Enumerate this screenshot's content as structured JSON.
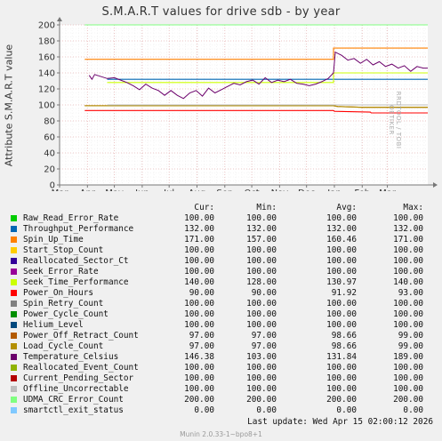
{
  "chart_data": {
    "type": "line",
    "title": "S.M.A.R.T values for drive sdb - by year",
    "ylabel": "Attribute S.M.A.R.T value",
    "xlabel": "",
    "ylim": [
      0,
      200
    ],
    "yticks": [
      0,
      20,
      40,
      60,
      80,
      100,
      120,
      140,
      160,
      180,
      200
    ],
    "x_range": [
      "2025-03-01",
      "2026-04-15"
    ],
    "x_ticks": [
      {
        "label": "Mar",
        "date": "2025-03-01"
      },
      {
        "label": "Apr",
        "date": "2025-04-01"
      },
      {
        "label": "May",
        "date": "2025-05-01"
      },
      {
        "label": "Jun",
        "date": "2025-06-01"
      },
      {
        "label": "Jul",
        "date": "2025-07-01"
      },
      {
        "label": "Aug",
        "date": "2025-08-01"
      },
      {
        "label": "Sep",
        "date": "2025-09-01"
      },
      {
        "label": "Oct",
        "date": "2025-10-01"
      },
      {
        "label": "Nov",
        "date": "2025-11-01"
      },
      {
        "label": "Dec",
        "date": "2025-12-01"
      },
      {
        "label": "Jan",
        "date": "2026-01-01"
      },
      {
        "label": "Feb",
        "date": "2026-02-01"
      },
      {
        "label": "Mar",
        "date": "2026-03-01"
      }
    ],
    "grid": true,
    "series": [
      {
        "name": "Raw_Read_Error_Rate",
        "color": "#00cc00",
        "cur": "100.00",
        "min": "100.00",
        "avg": "100.00",
        "max": "100.00",
        "points": [
          [
            "2025-04-23",
            100
          ],
          [
            "2026-04-15",
            100
          ]
        ]
      },
      {
        "name": "Throughput_Performance",
        "color": "#0066b3",
        "cur": "132.00",
        "min": "132.00",
        "avg": "132.00",
        "max": "132.00",
        "points": [
          [
            "2025-04-23",
            132
          ],
          [
            "2026-04-15",
            132
          ]
        ]
      },
      {
        "name": "Spin_Up_Time",
        "color": "#ff8000",
        "cur": "171.00",
        "min": "157.00",
        "avg": "160.46",
        "max": "171.00",
        "points": [
          [
            "2025-03-29",
            157
          ],
          [
            "2025-04-02",
            157
          ],
          [
            "2025-04-23",
            157
          ],
          [
            "2025-12-31",
            157
          ],
          [
            "2025-12-31",
            171
          ],
          [
            "2026-04-15",
            171
          ]
        ]
      },
      {
        "name": "Start_Stop_Count",
        "color": "#ffcc00",
        "cur": "100.00",
        "min": "100.00",
        "avg": "100.00",
        "max": "100.00",
        "points": [
          [
            "2025-04-23",
            100
          ],
          [
            "2026-04-15",
            100
          ]
        ]
      },
      {
        "name": "Reallocated_Sector_Ct",
        "color": "#330099",
        "cur": "100.00",
        "min": "100.00",
        "avg": "100.00",
        "max": "100.00",
        "points": [
          [
            "2025-04-23",
            100
          ],
          [
            "2026-04-15",
            100
          ]
        ]
      },
      {
        "name": "Seek_Error_Rate",
        "color": "#990099",
        "cur": "100.00",
        "min": "100.00",
        "avg": "100.00",
        "max": "100.00",
        "points": [
          [
            "2025-04-23",
            100
          ],
          [
            "2026-04-15",
            100
          ]
        ]
      },
      {
        "name": "Seek_Time_Performance",
        "color": "#ccff00",
        "cur": "140.00",
        "min": "128.00",
        "avg": "130.97",
        "max": "140.00",
        "points": [
          [
            "2025-04-23",
            128
          ],
          [
            "2025-12-31",
            128
          ],
          [
            "2025-12-31",
            140
          ],
          [
            "2026-04-15",
            140
          ]
        ]
      },
      {
        "name": "Power_On_Hours",
        "color": "#ff0000",
        "cur": "90.00",
        "min": "90.00",
        "avg": "91.92",
        "max": "93.00",
        "points": [
          [
            "2025-03-29",
            93
          ],
          [
            "2025-04-02",
            93
          ],
          [
            "2025-04-23",
            93
          ],
          [
            "2025-12-31",
            93
          ],
          [
            "2026-01-01",
            92
          ],
          [
            "2026-02-10",
            91
          ],
          [
            "2026-02-11",
            90
          ],
          [
            "2026-04-15",
            90
          ]
        ]
      },
      {
        "name": "Spin_Retry_Count",
        "color": "#808080",
        "cur": "100.00",
        "min": "100.00",
        "avg": "100.00",
        "max": "100.00",
        "points": [
          [
            "2025-04-23",
            100
          ],
          [
            "2026-04-15",
            100
          ]
        ]
      },
      {
        "name": "Power_Cycle_Count",
        "color": "#008f00",
        "cur": "100.00",
        "min": "100.00",
        "avg": "100.00",
        "max": "100.00",
        "points": [
          [
            "2025-04-23",
            100
          ],
          [
            "2026-04-15",
            100
          ]
        ]
      },
      {
        "name": "Helium_Level",
        "color": "#00487d",
        "cur": "100.00",
        "min": "100.00",
        "avg": "100.00",
        "max": "100.00",
        "points": [
          [
            "2025-04-23",
            100
          ],
          [
            "2026-04-15",
            100
          ]
        ]
      },
      {
        "name": "Power_Off_Retract_Count",
        "color": "#b35a00",
        "cur": "97.00",
        "min": "97.00",
        "avg": "98.66",
        "max": "99.00",
        "points": [
          [
            "2025-03-29",
            99
          ],
          [
            "2025-04-02",
            99
          ],
          [
            "2025-04-23",
            99
          ],
          [
            "2025-12-31",
            99
          ],
          [
            "2026-01-05",
            98
          ],
          [
            "2026-02-01",
            97
          ],
          [
            "2026-04-15",
            97
          ]
        ]
      },
      {
        "name": "Load_Cycle_Count",
        "color": "#b38f00",
        "cur": "97.00",
        "min": "97.00",
        "avg": "98.66",
        "max": "99.00",
        "points": [
          [
            "2025-03-29",
            99
          ],
          [
            "2025-04-02",
            99
          ],
          [
            "2025-04-23",
            99
          ],
          [
            "2025-12-31",
            99
          ],
          [
            "2026-01-05",
            98
          ],
          [
            "2026-02-01",
            97
          ],
          [
            "2026-04-15",
            97
          ]
        ]
      },
      {
        "name": "Temperature_Celsius",
        "color": "#6b006b",
        "cur": "146.38",
        "min": "103.00",
        "avg": "131.84",
        "max": "189.00",
        "points": [
          [
            "2025-04-03",
            137
          ],
          [
            "2025-04-06",
            132
          ],
          [
            "2025-04-09",
            138
          ],
          [
            "2025-04-23",
            133
          ],
          [
            "2025-05-01",
            134
          ],
          [
            "2025-05-08",
            131
          ],
          [
            "2025-05-15",
            128
          ],
          [
            "2025-05-22",
            124
          ],
          [
            "2025-05-29",
            119
          ],
          [
            "2025-06-05",
            126
          ],
          [
            "2025-06-12",
            121
          ],
          [
            "2025-06-19",
            118
          ],
          [
            "2025-06-26",
            112
          ],
          [
            "2025-07-03",
            118
          ],
          [
            "2025-07-10",
            112
          ],
          [
            "2025-07-17",
            108
          ],
          [
            "2025-07-24",
            115
          ],
          [
            "2025-07-31",
            118
          ],
          [
            "2025-08-07",
            111
          ],
          [
            "2025-08-14",
            121
          ],
          [
            "2025-08-21",
            115
          ],
          [
            "2025-08-28",
            119
          ],
          [
            "2025-09-04",
            123
          ],
          [
            "2025-09-11",
            127
          ],
          [
            "2025-09-18",
            125
          ],
          [
            "2025-09-25",
            129
          ],
          [
            "2025-10-02",
            131
          ],
          [
            "2025-10-09",
            126
          ],
          [
            "2025-10-16",
            134
          ],
          [
            "2025-10-23",
            128
          ],
          [
            "2025-10-30",
            131
          ],
          [
            "2025-11-06",
            129
          ],
          [
            "2025-11-13",
            132
          ],
          [
            "2025-11-20",
            127
          ],
          [
            "2025-11-27",
            126
          ],
          [
            "2025-12-04",
            124
          ],
          [
            "2025-12-11",
            126
          ],
          [
            "2025-12-18",
            129
          ],
          [
            "2025-12-25",
            133
          ],
          [
            "2025-12-31",
            140
          ],
          [
            "2026-01-02",
            166
          ],
          [
            "2026-01-09",
            162
          ],
          [
            "2026-01-16",
            156
          ],
          [
            "2026-01-23",
            158
          ],
          [
            "2026-01-30",
            152
          ],
          [
            "2026-02-06",
            157
          ],
          [
            "2026-02-13",
            150
          ],
          [
            "2026-02-20",
            154
          ],
          [
            "2026-02-27",
            148
          ],
          [
            "2026-03-06",
            151
          ],
          [
            "2026-03-13",
            146
          ],
          [
            "2026-03-20",
            149
          ],
          [
            "2026-03-27",
            142
          ],
          [
            "2026-04-03",
            148
          ],
          [
            "2026-04-10",
            146
          ],
          [
            "2026-04-15",
            146
          ]
        ]
      },
      {
        "name": "Reallocated_Event_Count",
        "color": "#8fb300",
        "cur": "100.00",
        "min": "100.00",
        "avg": "100.00",
        "max": "100.00",
        "points": [
          [
            "2025-04-23",
            100
          ],
          [
            "2026-04-15",
            100
          ]
        ]
      },
      {
        "name": "Current_Pending_Sector",
        "color": "#b30000",
        "cur": "100.00",
        "min": "100.00",
        "avg": "100.00",
        "max": "100.00",
        "points": [
          [
            "2025-04-23",
            100
          ],
          [
            "2026-04-15",
            100
          ]
        ]
      },
      {
        "name": "Offline_Uncorrectable",
        "color": "#bebebe",
        "cur": "100.00",
        "min": "100.00",
        "avg": "100.00",
        "max": "100.00",
        "points": [
          [
            "2025-04-23",
            100
          ],
          [
            "2026-04-15",
            100
          ]
        ]
      },
      {
        "name": "UDMA_CRC_Error_Count",
        "color": "#80ff80",
        "cur": "200.00",
        "min": "200.00",
        "avg": "200.00",
        "max": "200.00",
        "points": [
          [
            "2025-03-29",
            200
          ],
          [
            "2026-04-15",
            200
          ]
        ]
      },
      {
        "name": "smartctl_exit_status",
        "color": "#80c9ff",
        "cur": "0.00",
        "min": "0.00",
        "avg": "0.00",
        "max": "0.00",
        "points": [
          [
            "2025-03-01",
            0
          ],
          [
            "2026-04-15",
            0
          ]
        ]
      }
    ]
  },
  "legend_headers": {
    "cur": "Cur:",
    "min": "Min:",
    "avg": "Avg:",
    "max": "Max:"
  },
  "last_update": "Last update: Wed Apr 15 02:00:12 2026",
  "watermark": "RRDTOOL / TOBI OETIKER",
  "footer": "Munin 2.0.33-1~bpo8+1"
}
